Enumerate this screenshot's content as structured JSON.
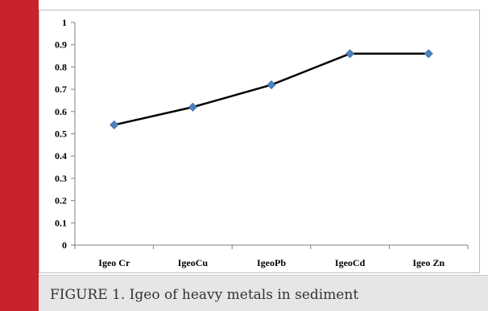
{
  "chart_data": {
    "type": "line",
    "categories": [
      "Igeo Cr",
      "IgeoCu",
      "IgeoPb",
      "IgeoCd",
      "Igeo Zn"
    ],
    "series": [
      {
        "values": [
          0.54,
          0.62,
          0.72,
          0.86,
          0.86
        ]
      }
    ],
    "ylim": [
      0,
      1
    ],
    "yticks": [
      "0",
      "0.1",
      "0.2",
      "0.3",
      "0.4",
      "0.5",
      "0.6",
      "0.7",
      "0.8",
      "0.9",
      "1"
    ],
    "title": "",
    "xlabel": "",
    "ylabel": "",
    "grid": false,
    "line_color": "#000000",
    "marker_color": "#4f81bd"
  },
  "caption": {
    "text": "FIGURE 1. Igeo of heavy metals in sediment"
  },
  "colors": {
    "side_bar": "#c8232c",
    "caption_bg": "#e6e6e6"
  }
}
